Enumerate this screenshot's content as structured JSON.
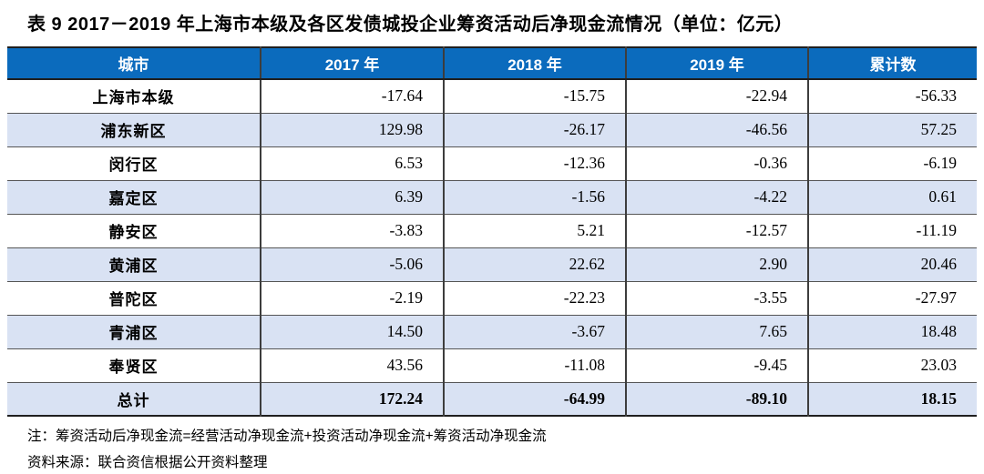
{
  "title": "表 9  2017－2019 年上海市本级及各区发债城投企业筹资活动后净现金流情况（单位：亿元）",
  "colors": {
    "header_bg": "#0b6bbd",
    "header_text": "#ffffff",
    "stripe_bg": "#d9e2f3",
    "border_dark": "#1f1f1f",
    "border_row": "#555555"
  },
  "table": {
    "headers": [
      "城市",
      "2017 年",
      "2018 年",
      "2019 年",
      "累计数"
    ],
    "rows": [
      {
        "city": "上海市本级",
        "values": [
          "-17.64",
          "-15.75",
          "-22.94",
          "-56.33"
        ],
        "total": false
      },
      {
        "city": "浦东新区",
        "values": [
          "129.98",
          "-26.17",
          "-46.56",
          "57.25"
        ],
        "total": false
      },
      {
        "city": "闵行区",
        "values": [
          "6.53",
          "-12.36",
          "-0.36",
          "-6.19"
        ],
        "total": false
      },
      {
        "city": "嘉定区",
        "values": [
          "6.39",
          "-1.56",
          "-4.22",
          "0.61"
        ],
        "total": false
      },
      {
        "city": "静安区",
        "values": [
          "-3.83",
          "5.21",
          "-12.57",
          "-11.19"
        ],
        "total": false
      },
      {
        "city": "黄浦区",
        "values": [
          "-5.06",
          "22.62",
          "2.90",
          "20.46"
        ],
        "total": false
      },
      {
        "city": "普陀区",
        "values": [
          "-2.19",
          "-22.23",
          "-3.55",
          "-27.97"
        ],
        "total": false
      },
      {
        "city": "青浦区",
        "values": [
          "14.50",
          "-3.67",
          "7.65",
          "18.48"
        ],
        "total": false
      },
      {
        "city": "奉贤区",
        "values": [
          "43.56",
          "-11.08",
          "-9.45",
          "23.03"
        ],
        "total": false
      },
      {
        "city": "总计",
        "values": [
          "172.24",
          "-64.99",
          "-89.10",
          "18.15"
        ],
        "total": true
      }
    ]
  },
  "notes": [
    "注：筹资活动后净现金流=经营活动净现金流+投资活动净现金流+筹资活动净现金流",
    "资料来源：联合资信根据公开资料整理"
  ]
}
